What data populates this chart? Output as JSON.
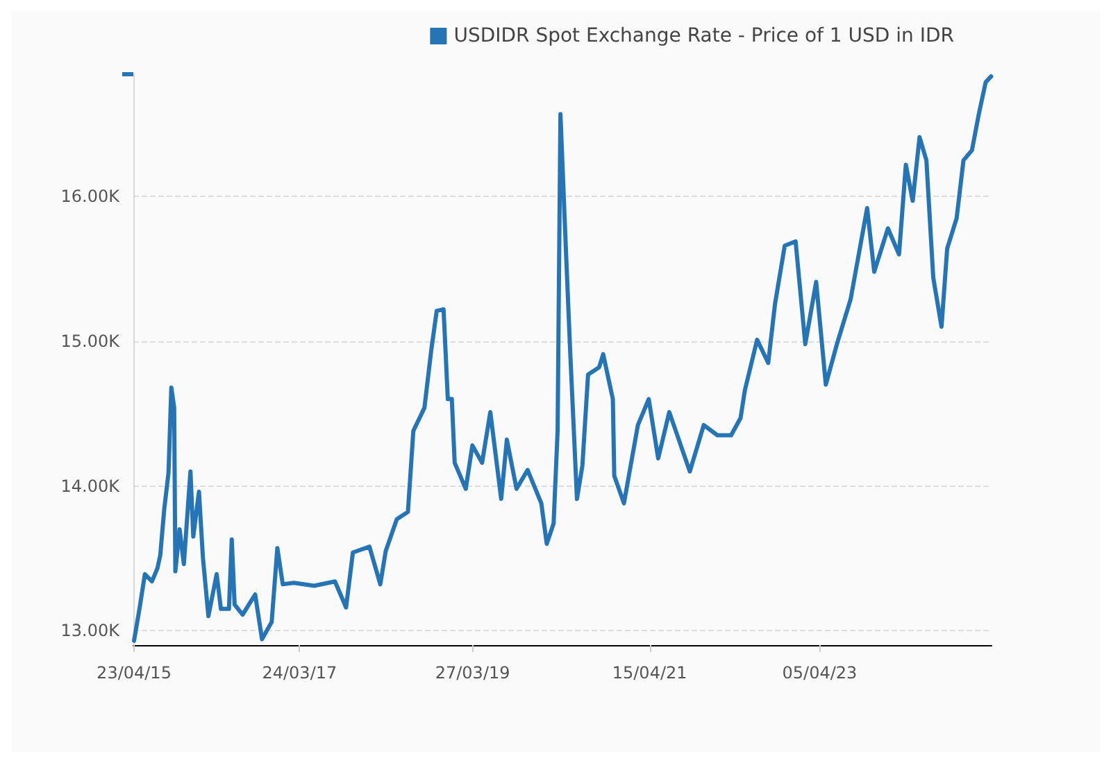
{
  "chart_data": {
    "type": "line",
    "x": [
      "2015-04-23",
      "2015-05-16",
      "2015-06-08",
      "2015-07-08",
      "2015-07-31",
      "2015-08-12",
      "2015-08-29",
      "2015-09-16",
      "2015-09-28",
      "2015-10-10",
      "2015-10-15",
      "2015-11-02",
      "2015-11-20",
      "2015-12-18",
      "2015-12-30",
      "2016-01-23",
      "2016-02-09",
      "2016-03-03",
      "2016-04-07",
      "2016-04-25",
      "2016-05-29",
      "2016-06-10",
      "2016-06-22",
      "2016-07-26",
      "2016-09-17",
      "2016-10-16",
      "2016-11-26",
      "2016-12-20",
      "2017-01-12",
      "2017-02-28",
      "2017-05-25",
      "2017-08-21",
      "2017-10-07",
      "2017-11-05",
      "2018-01-14",
      "2018-03-01",
      "2018-03-24",
      "2018-05-10",
      "2018-06-26",
      "2018-07-19",
      "2018-09-04",
      "2018-10-03",
      "2018-10-26",
      "2018-11-24",
      "2018-12-12",
      "2018-12-29",
      "2019-01-10",
      "2019-02-26",
      "2019-03-26",
      "2019-05-06",
      "2019-06-10",
      "2019-07-26",
      "2019-08-19",
      "2019-09-29",
      "2019-11-15",
      "2020-01-12",
      "2020-02-04",
      "2020-03-04",
      "2020-03-21",
      "2020-04-02",
      "2020-04-26",
      "2020-05-13",
      "2020-06-11",
      "2020-07-04",
      "2020-07-28",
      "2020-09-13",
      "2020-09-30",
      "2020-11-10",
      "2020-11-16",
      "2020-12-27",
      "2021-02-24",
      "2021-04-11",
      "2021-05-21",
      "2021-07-07",
      "2021-10-02",
      "2021-11-30",
      "2022-01-27",
      "2022-03-26",
      "2022-05-05",
      "2022-05-23",
      "2022-07-14",
      "2022-08-30",
      "2022-09-28",
      "2022-11-08",
      "2022-12-24",
      "2023-02-03",
      "2023-03-21",
      "2023-05-01",
      "2023-06-17",
      "2023-08-14",
      "2023-10-23",
      "2023-11-22",
      "2024-01-19",
      "2024-03-06",
      "2024-04-04",
      "2024-05-03",
      "2024-06-01",
      "2024-06-30",
      "2024-07-29",
      "2024-09-02",
      "2024-09-26",
      "2024-11-05",
      "2024-12-04",
      "2025-01-09",
      "2025-02-07",
      "2025-03-08",
      "2025-03-31"
    ],
    "series": [
      {
        "name": "USDIDR Spot Exchange Rate - Price of 1 USD in IDR",
        "color": "#2574b5",
        "values": [
          12930,
          13150,
          13390,
          13340,
          13430,
          13520,
          13840,
          14090,
          14680,
          14540,
          13410,
          13700,
          13460,
          14100,
          13650,
          13960,
          13500,
          13100,
          13390,
          13150,
          13150,
          13630,
          13180,
          13110,
          13250,
          12940,
          13060,
          13570,
          13320,
          13330,
          13310,
          13340,
          13160,
          13540,
          13580,
          13320,
          13550,
          13770,
          13820,
          14380,
          14540,
          14940,
          15210,
          15220,
          14600,
          14600,
          14160,
          13980,
          14280,
          14160,
          14510,
          13910,
          14320,
          13980,
          14110,
          13880,
          13600,
          13740,
          14380,
          16570,
          15600,
          14940,
          13910,
          14140,
          14770,
          14820,
          14910,
          14600,
          14070,
          13880,
          14420,
          14600,
          14190,
          14510,
          14100,
          14420,
          14350,
          14350,
          14470,
          14660,
          15010,
          14850,
          15260,
          15660,
          15690,
          14980,
          15410,
          14700,
          14980,
          15290,
          15920,
          15480,
          15780,
          15600,
          16220,
          15970,
          16410,
          16250,
          15440,
          15100,
          15640,
          15850,
          16250,
          16320,
          16570,
          16790,
          16830
        ]
      }
    ],
    "xlim": [
      "2015-04-20",
      "2025-04-02"
    ],
    "xticks": [
      {
        "value": "2015-04-23",
        "label": "23/04/15"
      },
      {
        "value": "2017-03-24",
        "label": "24/03/17"
      },
      {
        "value": "2019-03-27",
        "label": "27/03/19"
      },
      {
        "value": "2021-04-15",
        "label": "15/04/21"
      },
      {
        "value": "2023-04-05",
        "label": "05/04/23"
      }
    ],
    "ylim": [
      12900,
      16850
    ],
    "yticks": [
      {
        "value": 13000,
        "label": "13.00K"
      },
      {
        "value": 14000,
        "label": "14.00K"
      },
      {
        "value": 15000,
        "label": "15.00K"
      },
      {
        "value": 16000,
        "label": "16.00K"
      },
      {
        "value": 16850,
        "label": null
      }
    ],
    "grid": "y",
    "legend": "top right",
    "marker": "none",
    "line_style": "solid"
  }
}
